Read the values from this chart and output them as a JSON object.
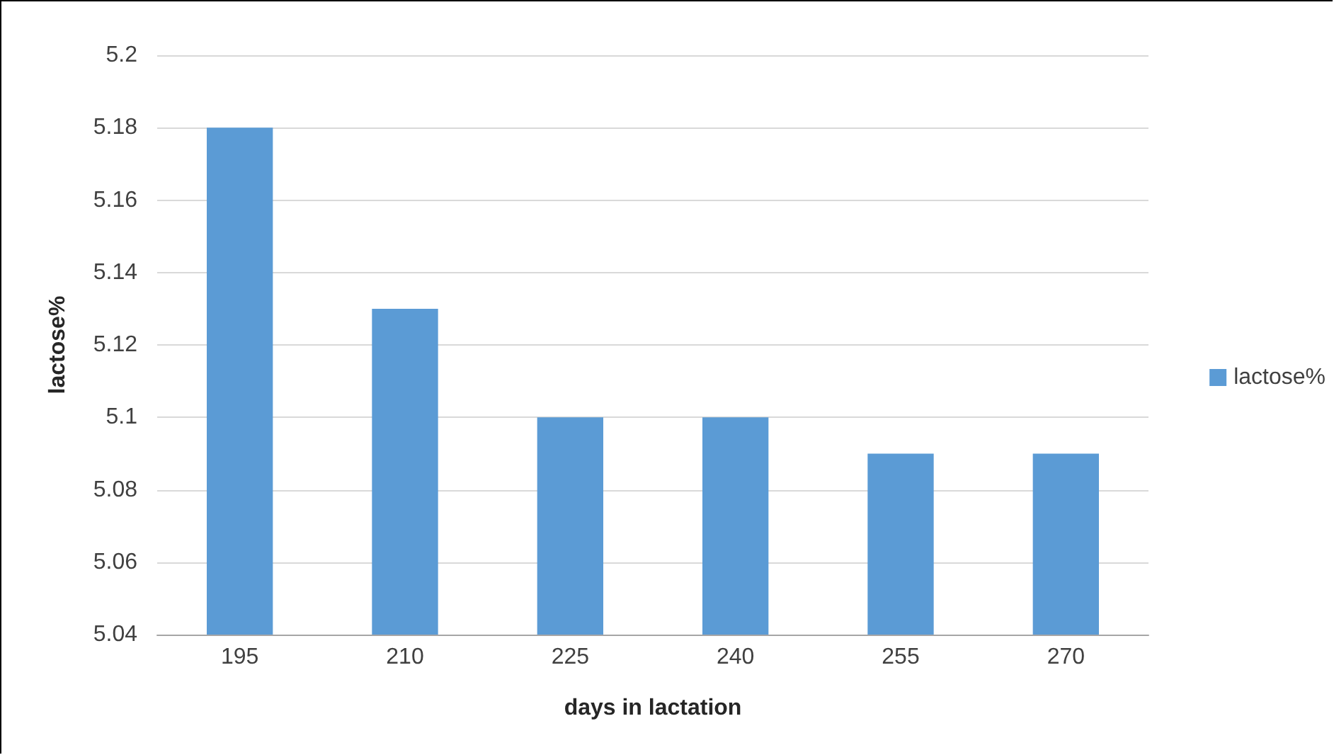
{
  "chart_data": {
    "type": "bar",
    "xlabel": "days in lactation",
    "ylabel": "lactose%",
    "categories": [
      "195",
      "210",
      "225",
      "240",
      "255",
      "270"
    ],
    "series": [
      {
        "name": "lactose%",
        "color": "#5b9bd5",
        "values": [
          5.18,
          5.13,
          5.1,
          5.1,
          5.09,
          5.09
        ]
      }
    ],
    "ylim": [
      5.04,
      5.2
    ],
    "yticks": [
      5.04,
      5.06,
      5.08,
      5.1,
      5.12,
      5.14,
      5.16,
      5.18,
      5.2
    ],
    "grid": "y",
    "legend": "right"
  }
}
